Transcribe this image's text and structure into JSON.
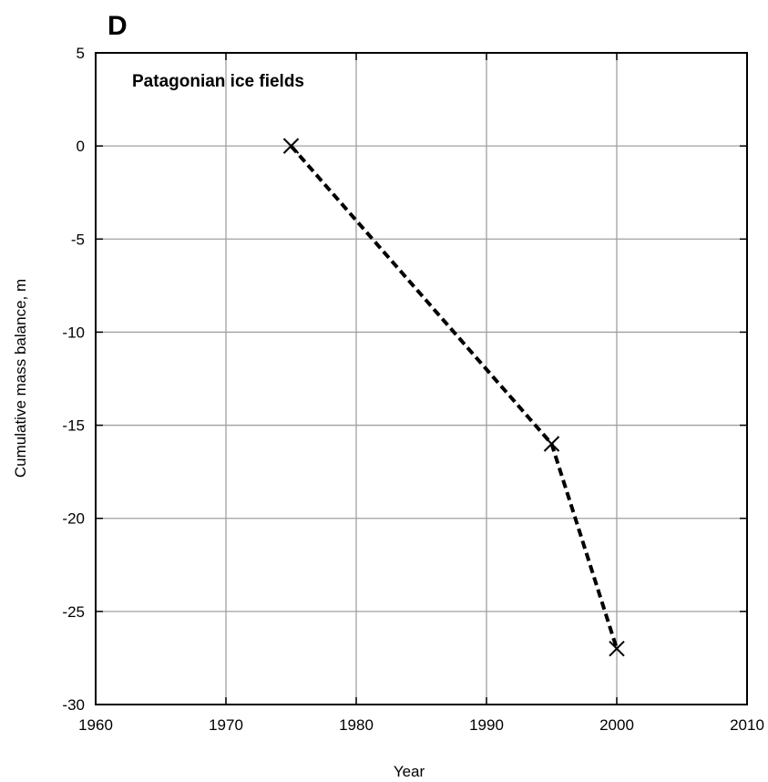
{
  "panel_label": "D",
  "chart_data": {
    "type": "line",
    "annotation": "Patagonian ice fields",
    "xlabel": "Year",
    "ylabel": "Cumulative mass balance, m",
    "xlim": [
      1960,
      2010
    ],
    "ylim": [
      -30,
      5
    ],
    "x_ticks": [
      1960,
      1970,
      1980,
      1990,
      2000,
      2010
    ],
    "y_ticks": [
      5,
      0,
      -5,
      -10,
      -15,
      -20,
      -25,
      -30
    ],
    "grid": true,
    "line_style": "dashed",
    "marker": "x",
    "series": [
      {
        "x": [
          1975,
          1995,
          2000
        ],
        "y": [
          0,
          -16,
          -27
        ]
      }
    ]
  }
}
